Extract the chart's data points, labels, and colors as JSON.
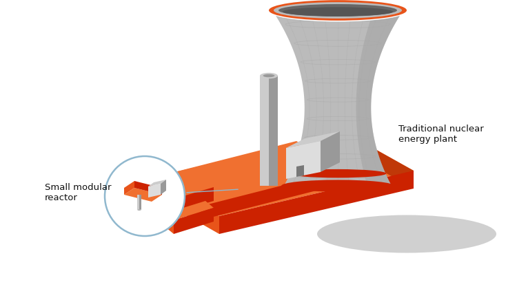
{
  "bg_color": "#ffffff",
  "orange_top": "#F07030",
  "orange_front": "#E8541A",
  "orange_dark": "#C03808",
  "orange_red": "#CC2200",
  "gray_light": "#CCCCCC",
  "gray_mid": "#BBBBBB",
  "gray_dark": "#999999",
  "gray_vdark": "#777777",
  "gray_shadow": "#AAAAAA",
  "white": "#ffffff",
  "circle_stroke": "#90B8CE",
  "label_smr": "Small modular\nreactor",
  "label_trad": "Traditional nuclear\nenergy plant",
  "fig_width": 7.5,
  "fig_height": 4.2,
  "dpi": 100
}
